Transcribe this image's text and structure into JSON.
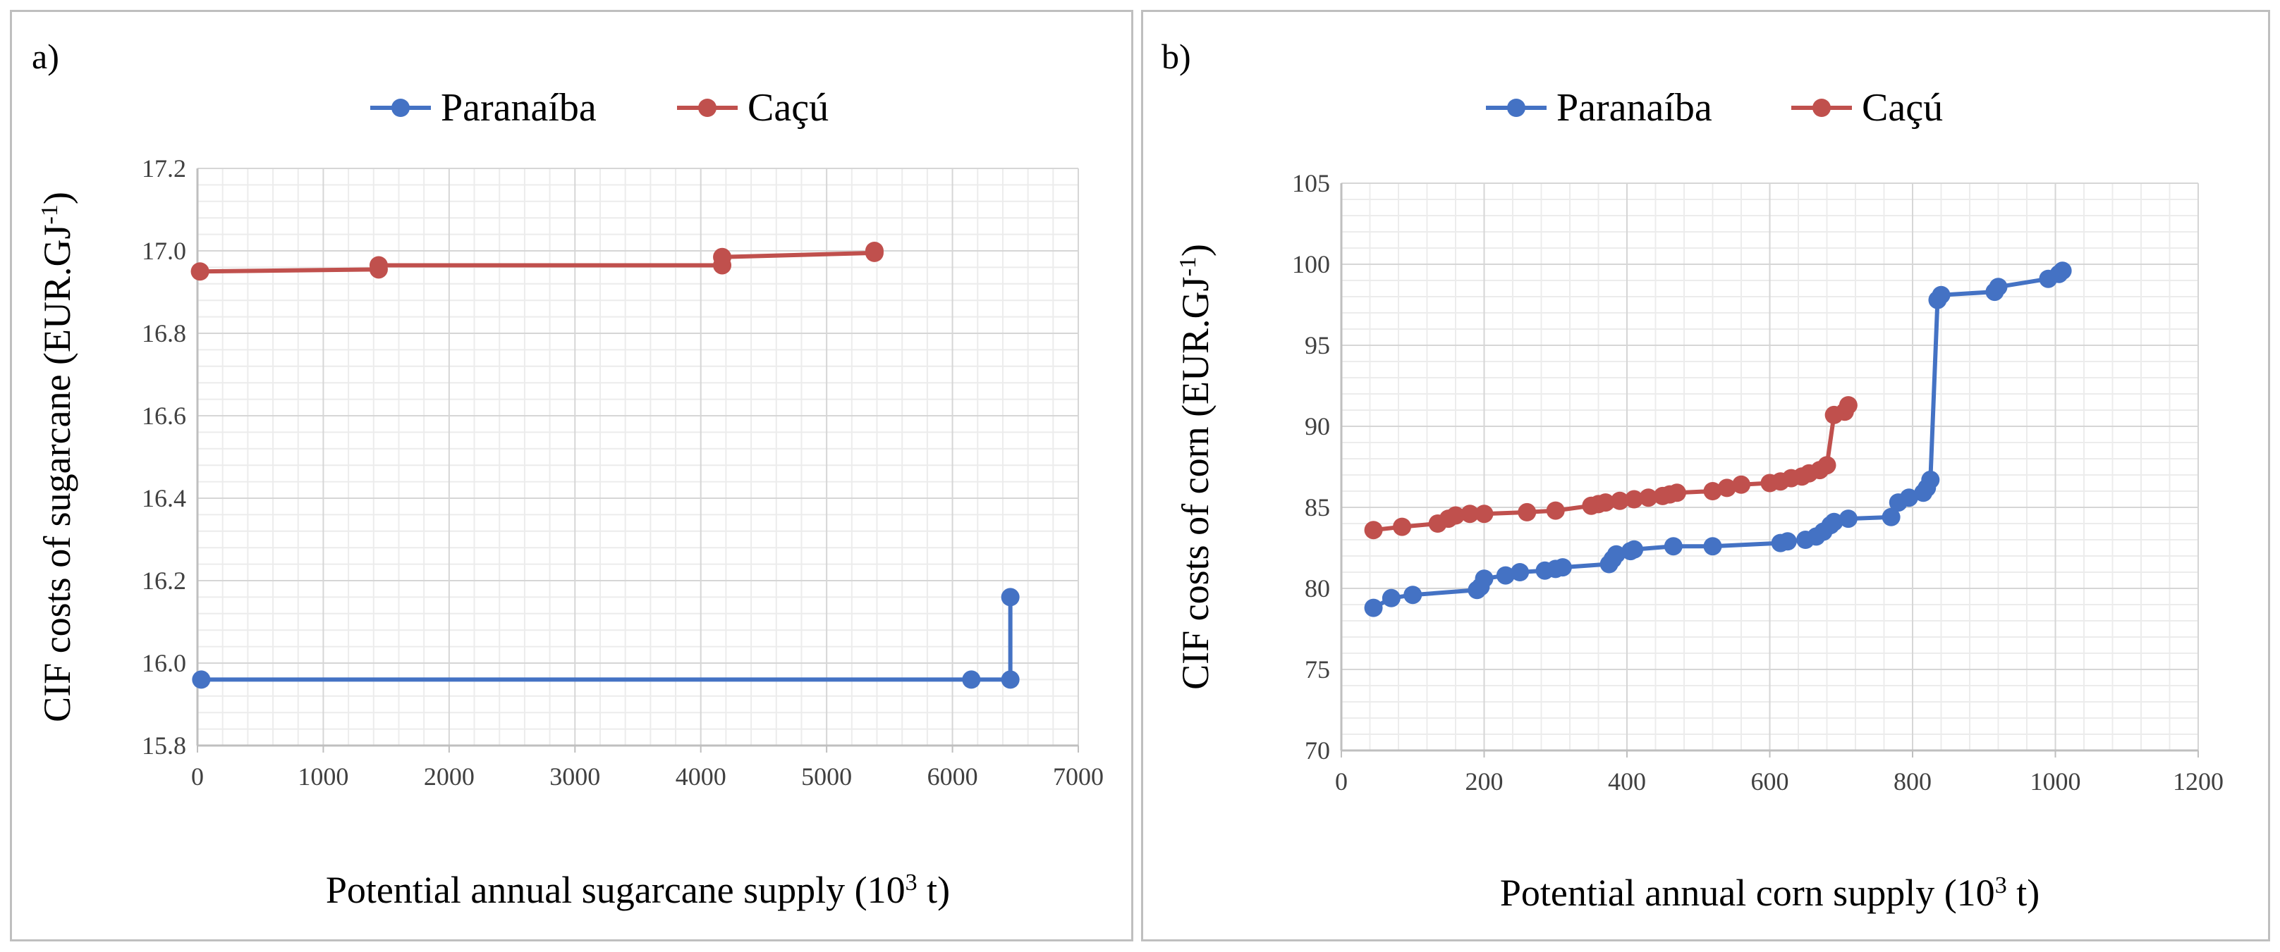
{
  "chart_data": [
    {
      "type": "line",
      "panel_label": "a)",
      "ylabel": "CIF costs of sugarcane (EUR.GJ",
      "ylabel_sup": "-1",
      "ylabel_end": ")",
      "xlabel": "Potential annual sugarcane supply (10",
      "xlabel_sup": "3",
      "xlabel_end": " t)",
      "xlim": [
        0,
        7000
      ],
      "ylim": [
        15.8,
        17.2
      ],
      "x_ticks": [
        0,
        1000,
        2000,
        3000,
        4000,
        5000,
        6000,
        7000
      ],
      "y_ticks": [
        "15.8",
        "16.0",
        "16.2",
        "16.4",
        "16.6",
        "16.8",
        "17.0",
        "17.2"
      ],
      "legend_position": "top",
      "grid": true,
      "series": [
        {
          "name": "Paranaíba",
          "color": "#4472c4",
          "points": [
            [
              30,
              15.96
            ],
            [
              6150,
              15.96
            ],
            [
              6460,
              15.96
            ],
            [
              6460,
              16.16
            ]
          ]
        },
        {
          "name": "Caçú",
          "color": "#c0504d",
          "points": [
            [
              20,
              16.95
            ],
            [
              1440,
              16.955
            ],
            [
              1440,
              16.965
            ],
            [
              4170,
              16.965
            ],
            [
              4170,
              16.985
            ],
            [
              5380,
              16.995
            ],
            [
              5380,
              17.0
            ]
          ]
        }
      ]
    },
    {
      "type": "line",
      "panel_label": "b)",
      "ylabel": "CIF costs of corn (EUR.GJ",
      "ylabel_sup": "-1",
      "ylabel_end": ")",
      "xlabel": "Potential annual corn supply (10",
      "xlabel_sup": "3",
      "xlabel_end": " t)",
      "xlim": [
        0,
        1200
      ],
      "ylim": [
        70,
        105
      ],
      "x_ticks": [
        0,
        200,
        400,
        600,
        800,
        1000,
        1200
      ],
      "y_ticks": [
        "70",
        "75",
        "80",
        "85",
        "90",
        "95",
        "100",
        "105"
      ],
      "legend_position": "top",
      "grid": true,
      "series": [
        {
          "name": "Paranaíba",
          "color": "#4472c4",
          "points": [
            [
              45,
              78.8
            ],
            [
              70,
              79.4
            ],
            [
              100,
              79.6
            ],
            [
              190,
              79.9
            ],
            [
              195,
              80.1
            ],
            [
              200,
              80.6
            ],
            [
              230,
              80.8
            ],
            [
              250,
              81.0
            ],
            [
              285,
              81.1
            ],
            [
              300,
              81.2
            ],
            [
              310,
              81.3
            ],
            [
              375,
              81.5
            ],
            [
              380,
              81.8
            ],
            [
              385,
              82.1
            ],
            [
              405,
              82.3
            ],
            [
              410,
              82.4
            ],
            [
              465,
              82.6
            ],
            [
              520,
              82.6
            ],
            [
              615,
              82.8
            ],
            [
              625,
              82.9
            ],
            [
              650,
              83.0
            ],
            [
              665,
              83.2
            ],
            [
              675,
              83.5
            ],
            [
              685,
              83.9
            ],
            [
              690,
              84.1
            ],
            [
              710,
              84.3
            ],
            [
              770,
              84.4
            ],
            [
              780,
              85.3
            ],
            [
              795,
              85.6
            ],
            [
              815,
              85.9
            ],
            [
              820,
              86.2
            ],
            [
              825,
              86.7
            ],
            [
              835,
              97.8
            ],
            [
              840,
              98.1
            ],
            [
              915,
              98.3
            ],
            [
              920,
              98.6
            ],
            [
              990,
              99.1
            ],
            [
              1005,
              99.4
            ],
            [
              1010,
              99.6
            ]
          ]
        },
        {
          "name": "Caçú",
          "color": "#c0504d",
          "points": [
            [
              45,
              83.6
            ],
            [
              85,
              83.8
            ],
            [
              135,
              84.0
            ],
            [
              150,
              84.3
            ],
            [
              160,
              84.5
            ],
            [
              180,
              84.6
            ],
            [
              200,
              84.6
            ],
            [
              260,
              84.7
            ],
            [
              300,
              84.8
            ],
            [
              350,
              85.1
            ],
            [
              360,
              85.2
            ],
            [
              370,
              85.3
            ],
            [
              390,
              85.4
            ],
            [
              410,
              85.5
            ],
            [
              430,
              85.6
            ],
            [
              450,
              85.7
            ],
            [
              460,
              85.8
            ],
            [
              470,
              85.9
            ],
            [
              520,
              86.0
            ],
            [
              540,
              86.2
            ],
            [
              560,
              86.4
            ],
            [
              600,
              86.5
            ],
            [
              615,
              86.6
            ],
            [
              630,
              86.8
            ],
            [
              645,
              86.9
            ],
            [
              655,
              87.1
            ],
            [
              670,
              87.3
            ],
            [
              680,
              87.6
            ],
            [
              690,
              90.7
            ],
            [
              705,
              90.9
            ],
            [
              710,
              91.3
            ]
          ]
        }
      ]
    }
  ]
}
